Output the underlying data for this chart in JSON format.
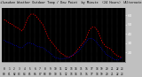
{
  "title": "Milwaukee Weather Outdoor Temp / Dew Point  by Minute  (24 Hours) (Alternate)",
  "bg_color": "#c0c0c0",
  "plot_bg_color": "#000000",
  "temp_color": "#ff0000",
  "dew_color": "#0000ff",
  "ylim": [
    10,
    68
  ],
  "ytick_vals": [
    20,
    30,
    40,
    50,
    60
  ],
  "ytick_labels": [
    "20",
    "30",
    "40",
    "50",
    "60"
  ],
  "temp_data": [
    55,
    55,
    54,
    54,
    53,
    53,
    52,
    52,
    51,
    51,
    50,
    50,
    49,
    49,
    48,
    48,
    47,
    47,
    46,
    46,
    45,
    45,
    44,
    44,
    43,
    44,
    45,
    47,
    49,
    51,
    53,
    55,
    57,
    58,
    59,
    60,
    61,
    61,
    61,
    61,
    61,
    60,
    60,
    59,
    58,
    57,
    56,
    55,
    54,
    53,
    52,
    51,
    50,
    49,
    47,
    45,
    43,
    41,
    39,
    37,
    35,
    34,
    33,
    32,
    31,
    30,
    29,
    28,
    27,
    26,
    25,
    24,
    23,
    22,
    21,
    20,
    19,
    19,
    18,
    18,
    17,
    17,
    16,
    16,
    16,
    15,
    15,
    15,
    15,
    15,
    16,
    16,
    17,
    17,
    18,
    19,
    20,
    21,
    22,
    23,
    24,
    25,
    26,
    27,
    28,
    29,
    30,
    31,
    32,
    33,
    35,
    37,
    39,
    41,
    43,
    44,
    45,
    46,
    47,
    47,
    47,
    47,
    47,
    46,
    45,
    44,
    43,
    41,
    39,
    37,
    35,
    33,
    31,
    30,
    29,
    28,
    27,
    26,
    26,
    25,
    25,
    25,
    24,
    24,
    23,
    22,
    21,
    20,
    19,
    18,
    18,
    17,
    17,
    16,
    16,
    16,
    15,
    15,
    15,
    15
  ],
  "dew_data": [
    33,
    33,
    32,
    32,
    31,
    31,
    31,
    30,
    30,
    29,
    29,
    29,
    28,
    28,
    28,
    27,
    27,
    27,
    26,
    26,
    26,
    25,
    25,
    25,
    25,
    25,
    26,
    27,
    28,
    28,
    29,
    29,
    30,
    30,
    30,
    30,
    30,
    29,
    29,
    29,
    28,
    28,
    27,
    27,
    27,
    26,
    26,
    26,
    26,
    26,
    25,
    25,
    25,
    24,
    24,
    23,
    23,
    22,
    22,
    21,
    20,
    20,
    19,
    18,
    18,
    17,
    16,
    16,
    15,
    15,
    14,
    14,
    14,
    13,
    13,
    13,
    13,
    13,
    13,
    13,
    13,
    13,
    14,
    14,
    14,
    14,
    14,
    15,
    15,
    15,
    16,
    16,
    17,
    17,
    18,
    18,
    19,
    19,
    20,
    20,
    21,
    22,
    23,
    24,
    25,
    26,
    27,
    28,
    29,
    30,
    31,
    32,
    33,
    34,
    35,
    35,
    35,
    35,
    35,
    35,
    34,
    34,
    33,
    32,
    31,
    30,
    29,
    28,
    27,
    26,
    25,
    24,
    23,
    22,
    21,
    20,
    19,
    18,
    17,
    17,
    16,
    16,
    15,
    15,
    14,
    14,
    13,
    13,
    13,
    12,
    12,
    12,
    12,
    12,
    12,
    13,
    13,
    14,
    14,
    15
  ],
  "n_xticks": 24,
  "xtick_labels_row1": [
    "0",
    "1",
    "2",
    "3",
    "4",
    "5",
    "6",
    "7",
    "8",
    "9",
    "10",
    "11",
    "12",
    "13",
    "14",
    "15",
    "16",
    "17",
    "18",
    "19",
    "20",
    "21",
    "22",
    "23"
  ],
  "xtick_labels_row2": [
    "00",
    "01",
    "02",
    "03",
    "04",
    "05",
    "06",
    "07",
    "08",
    "09",
    "10",
    "11",
    "12",
    "13",
    "14",
    "15",
    "16",
    "17",
    "18",
    "19",
    "20",
    "21",
    "22",
    "23"
  ]
}
